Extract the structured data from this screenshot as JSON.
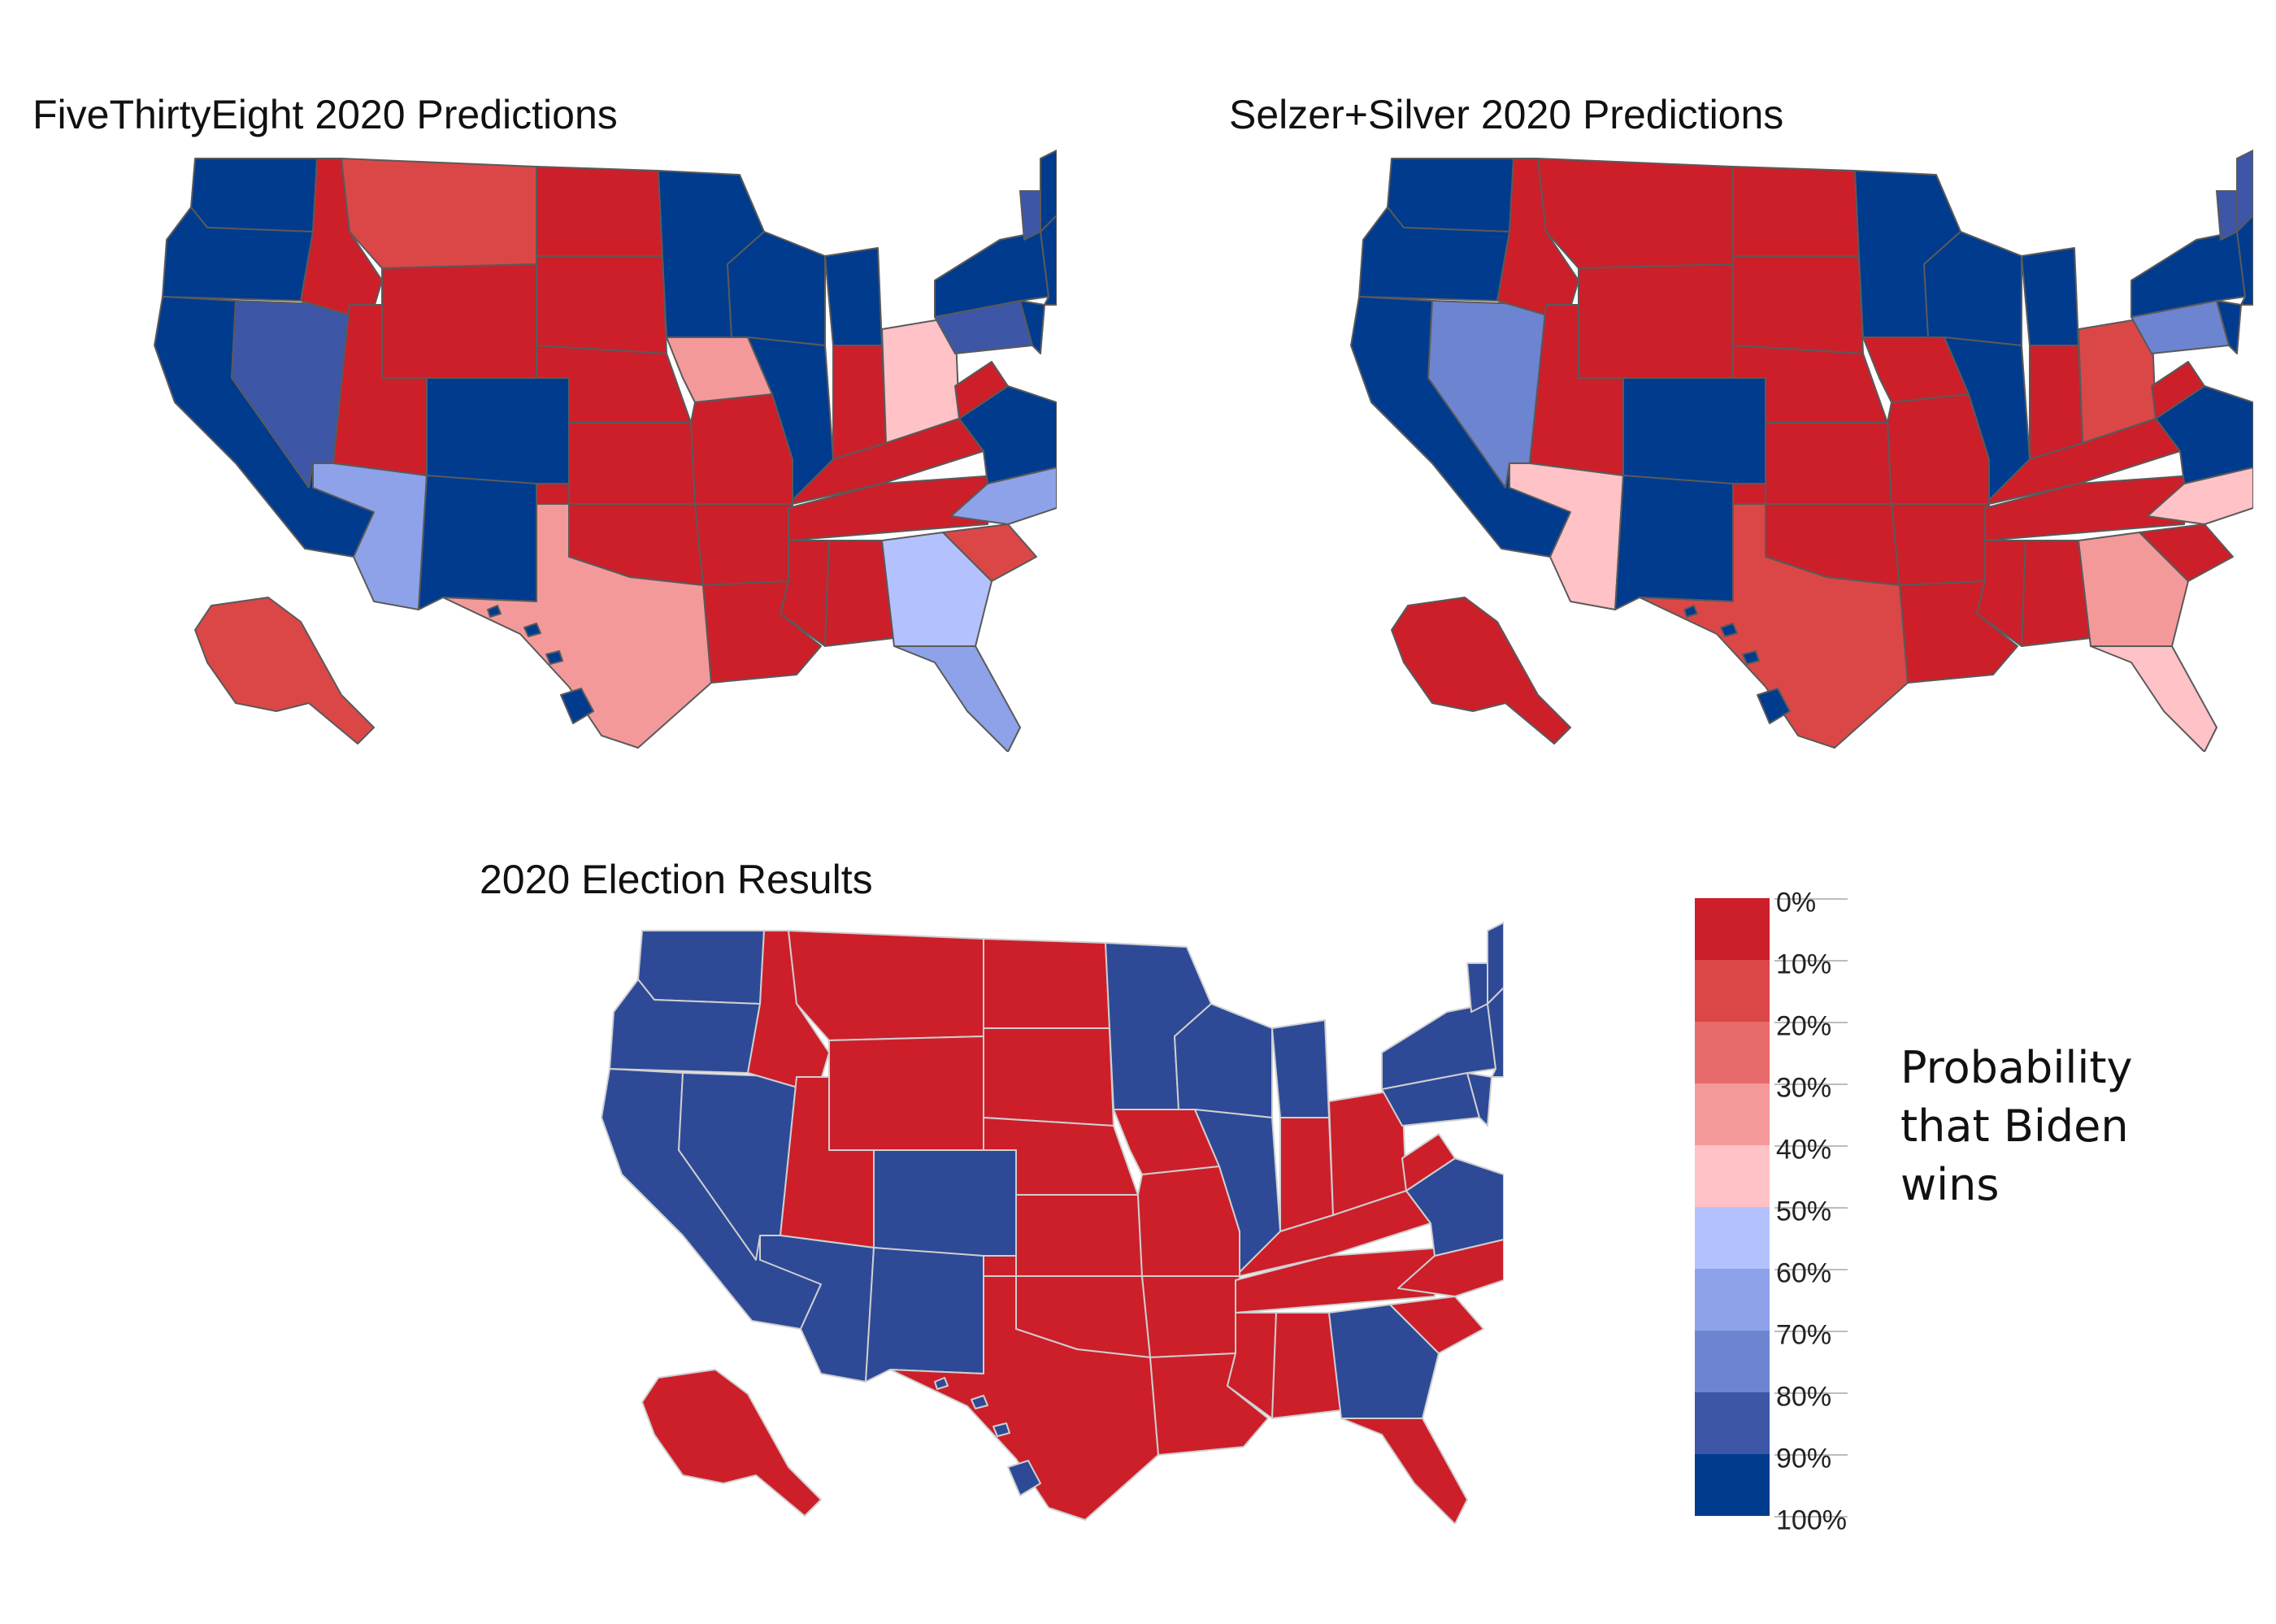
{
  "maps": [
    {
      "title": "FiveThirtyEight 2020 Predictions",
      "style": "prediction",
      "states": {
        "WA": "#003b8e",
        "OR": "#003b8e",
        "CA": "#003b8e",
        "NV": "#3d56a6",
        "ID": "#cc1f2a",
        "MT": "#db4747",
        "WY": "#cc1f2a",
        "UT": "#cc1f2a",
        "AZ": "#8da2e8",
        "CO": "#003b8e",
        "NM": "#003b8e",
        "ND": "#cc1f2a",
        "SD": "#cc1f2a",
        "NE": "#cc1f2a",
        "KS": "#cc1f2a",
        "OK": "#cc1f2a",
        "TX": "#f4999a",
        "MN": "#003b8e",
        "IA": "#f4999a",
        "MO": "#cc1f2a",
        "AR": "#cc1f2a",
        "LA": "#cc1f2a",
        "WI": "#003b8e",
        "IL": "#003b8e",
        "MI": "#003b8e",
        "IN": "#cc1f2a",
        "OH": "#ffc2c6",
        "KY": "#cc1f2a",
        "TN": "#cc1f2a",
        "MS": "#cc1f2a",
        "AL": "#cc1f2a",
        "GA": "#b3c2ff",
        "FL": "#8da2e8",
        "SC": "#db4747",
        "NC": "#8da2e8",
        "VA": "#003b8e",
        "WV": "#cc1f2a",
        "PA": "#3d56a6",
        "NY": "#003b8e",
        "NE_REG": "#003b8e",
        "ME": "#003b8e",
        "NH": "#3d56a6",
        "NJ": "#003b8e",
        "AK": "#db4747",
        "HI": "#003b8e"
      }
    },
    {
      "title": "Selzer+Silver 2020 Predictions",
      "style": "prediction",
      "states": {
        "WA": "#003b8e",
        "OR": "#003b8e",
        "CA": "#003b8e",
        "NV": "#6d84d0",
        "ID": "#cc1f2a",
        "MT": "#cc1f2a",
        "WY": "#cc1f2a",
        "UT": "#cc1f2a",
        "AZ": "#ffc2c6",
        "CO": "#003b8e",
        "NM": "#003b8e",
        "ND": "#cc1f2a",
        "SD": "#cc1f2a",
        "NE": "#cc1f2a",
        "KS": "#cc1f2a",
        "OK": "#cc1f2a",
        "TX": "#db4747",
        "MN": "#003b8e",
        "IA": "#cc1f2a",
        "MO": "#cc1f2a",
        "AR": "#cc1f2a",
        "LA": "#cc1f2a",
        "WI": "#003b8e",
        "IL": "#003b8e",
        "MI": "#003b8e",
        "IN": "#cc1f2a",
        "OH": "#db4747",
        "KY": "#cc1f2a",
        "TN": "#cc1f2a",
        "MS": "#cc1f2a",
        "AL": "#cc1f2a",
        "GA": "#f4999a",
        "FL": "#ffc2c6",
        "SC": "#cc1f2a",
        "NC": "#ffc2c6",
        "VA": "#003b8e",
        "WV": "#cc1f2a",
        "PA": "#6d84d0",
        "NY": "#003b8e",
        "NE_REG": "#003b8e",
        "ME": "#3d56a6",
        "NH": "#3d56a6",
        "NJ": "#003b8e",
        "AK": "#cc1f2a",
        "HI": "#003b8e"
      }
    },
    {
      "title": "2020 Election Results",
      "style": "results",
      "states": {
        "WA": "#2e4a97",
        "OR": "#2e4a97",
        "CA": "#2e4a97",
        "NV": "#2e4a97",
        "ID": "#cc1f2a",
        "MT": "#cc1f2a",
        "WY": "#cc1f2a",
        "UT": "#cc1f2a",
        "AZ": "#2e4a97",
        "CO": "#2e4a97",
        "NM": "#2e4a97",
        "ND": "#cc1f2a",
        "SD": "#cc1f2a",
        "NE": "#cc1f2a",
        "KS": "#cc1f2a",
        "OK": "#cc1f2a",
        "TX": "#cc1f2a",
        "MN": "#2e4a97",
        "IA": "#cc1f2a",
        "MO": "#cc1f2a",
        "AR": "#cc1f2a",
        "LA": "#cc1f2a",
        "WI": "#2e4a97",
        "IL": "#2e4a97",
        "MI": "#2e4a97",
        "IN": "#cc1f2a",
        "OH": "#cc1f2a",
        "KY": "#cc1f2a",
        "TN": "#cc1f2a",
        "MS": "#cc1f2a",
        "AL": "#cc1f2a",
        "GA": "#2e4a97",
        "FL": "#cc1f2a",
        "SC": "#cc1f2a",
        "NC": "#cc1f2a",
        "VA": "#2e4a97",
        "WV": "#cc1f2a",
        "PA": "#2e4a97",
        "NY": "#2e4a97",
        "NE_REG": "#2e4a97",
        "ME": "#2e4a97",
        "NH": "#2e4a97",
        "NJ": "#2e4a97",
        "AK": "#cc1f2a",
        "HI": "#2e4a97"
      }
    }
  ],
  "legend": {
    "title": "Probability that Biden wins",
    "ticks": [
      "0%",
      "10%",
      "20%",
      "30%",
      "40%",
      "50%",
      "60%",
      "70%",
      "80%",
      "90%",
      "100%"
    ],
    "colors": [
      "#cc1f2a",
      "#db4747",
      "#e86b6b",
      "#f4999a",
      "#ffc2c6",
      "#b3c2ff",
      "#8da2e8",
      "#6d84d0",
      "#3d56a6",
      "#003b8e"
    ]
  }
}
